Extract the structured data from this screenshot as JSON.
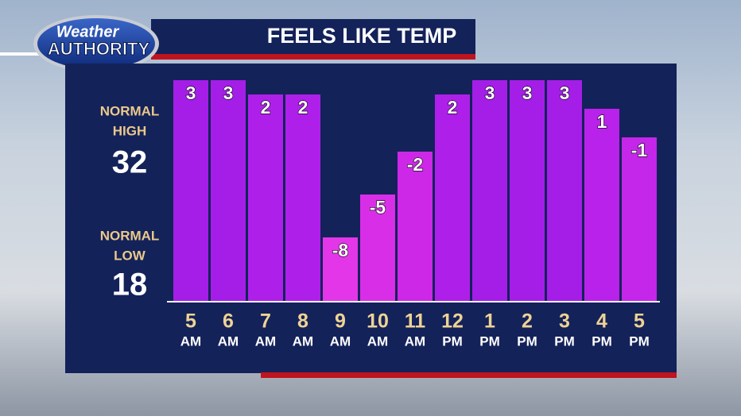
{
  "logo": {
    "line1": "Weather",
    "line2": "AUTHORITY"
  },
  "normal_high": {
    "label1": "NORMAL",
    "label2": "HIGH",
    "value": 32
  },
  "normal_low": {
    "label1": "NORMAL",
    "label2": "LOW",
    "value": 18
  },
  "chart_data": {
    "type": "bar",
    "title": "FEELS LIKE TEMP",
    "categories": [
      "5",
      "6",
      "7",
      "8",
      "9",
      "10",
      "11",
      "12",
      "1",
      "2",
      "3",
      "4",
      "5"
    ],
    "periods": [
      "AM",
      "AM",
      "AM",
      "AM",
      "AM",
      "AM",
      "AM",
      "PM",
      "PM",
      "PM",
      "PM",
      "PM",
      "PM"
    ],
    "values": [
      3,
      3,
      2,
      2,
      -8,
      -5,
      -2,
      2,
      3,
      3,
      3,
      1,
      -1
    ],
    "colors": [
      "#a41ee8",
      "#a41ee8",
      "#ae20ea",
      "#ae20ea",
      "#e236e8",
      "#d92ee8",
      "#cd28e8",
      "#ae20ea",
      "#a41ee8",
      "#a41ee8",
      "#a41ee8",
      "#b822ea",
      "#c426ea"
    ],
    "ylim": [
      -12.5,
      3.5
    ]
  }
}
